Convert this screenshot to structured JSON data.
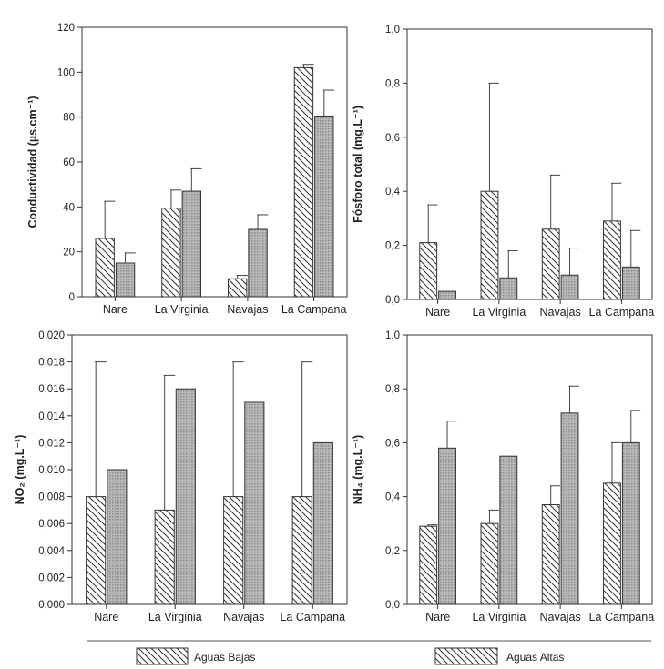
{
  "legend": {
    "items": [
      {
        "label": "Aguas Bajas",
        "pattern": "hatch"
      },
      {
        "label": "Aguas Altas",
        "pattern": "hatch"
      }
    ]
  },
  "colors": {
    "bajas_fill": "#ffffff",
    "altas_fill": "#a9a9a9",
    "stroke": "#333333"
  },
  "chart_data": [
    {
      "type": "bar",
      "categories": [
        "Nare",
        "La Virginia",
        "Navajas",
        "La Campana"
      ],
      "ylabel": "Conductividad (µs.cm⁻¹)",
      "ylim": [
        0,
        120
      ],
      "yticks": [
        0,
        20,
        40,
        60,
        80,
        100,
        120
      ],
      "yticklabels": [
        "0",
        "20",
        "40",
        "60",
        "80",
        "100",
        "120"
      ],
      "series": [
        {
          "name": "Aguas Bajas",
          "values": [
            26,
            39.5,
            8,
            102
          ],
          "error_top": [
            42.5,
            47.5,
            9.5,
            103.5
          ]
        },
        {
          "name": "Aguas Altas",
          "values": [
            15,
            47,
            30,
            80.5
          ],
          "error_top": [
            19.5,
            57,
            36.5,
            92
          ]
        }
      ]
    },
    {
      "type": "bar",
      "categories": [
        "Nare",
        "La Virginia",
        "Navajas",
        "La Campana"
      ],
      "ylabel": "Fósforo total (mg.L⁻¹)",
      "ylim": [
        0,
        1
      ],
      "yticks": [
        0,
        0.2,
        0.4,
        0.6,
        0.8,
        1.0
      ],
      "yticklabels": [
        "0,0",
        "0,2",
        "0,4",
        "0,6",
        "0,8",
        "1,0"
      ],
      "series": [
        {
          "name": "Aguas Bajas",
          "values": [
            0.21,
            0.4,
            0.26,
            0.29
          ],
          "error_top": [
            0.35,
            0.8,
            0.46,
            0.43
          ]
        },
        {
          "name": "Aguas Altas",
          "values": [
            0.03,
            0.08,
            0.09,
            0.12
          ],
          "error_top": [
            0.03,
            0.18,
            0.19,
            0.255
          ]
        }
      ]
    },
    {
      "type": "bar",
      "categories": [
        "Nare",
        "La Virginia",
        "Navajas",
        "La Campana"
      ],
      "ylabel": "NO₂ (mg.L⁻¹)",
      "ylim": [
        0,
        0.02
      ],
      "yticks": [
        0,
        0.002,
        0.004,
        0.006,
        0.008,
        0.01,
        0.012,
        0.014,
        0.016,
        0.018,
        0.02
      ],
      "yticklabels": [
        "0,000",
        "0,002",
        "0,004",
        "0,006",
        "0,008",
        "0,010",
        "0,012",
        "0,014",
        "0,016",
        "0,018",
        "0,020"
      ],
      "series": [
        {
          "name": "Aguas Bajas",
          "values": [
            0.008,
            0.007,
            0.008,
            0.008
          ],
          "error_top": [
            0.018,
            0.017,
            0.018,
            0.018
          ]
        },
        {
          "name": "Aguas Altas",
          "values": [
            0.01,
            0.016,
            0.015,
            0.012
          ],
          "error_top": [
            0.01,
            0.016,
            0.015,
            0.012
          ]
        }
      ]
    },
    {
      "type": "bar",
      "categories": [
        "Nare",
        "La Virginia",
        "Navajas",
        "La Campana"
      ],
      "ylabel": "NH₄ (mg.L⁻¹)",
      "ylim": [
        0,
        1
      ],
      "yticks": [
        0,
        0.2,
        0.4,
        0.6,
        0.8,
        1.0
      ],
      "yticklabels": [
        "0,0",
        "0,2",
        "0,4",
        "0,6",
        "0,8",
        "1,0"
      ],
      "series": [
        {
          "name": "Aguas Bajas",
          "values": [
            0.29,
            0.3,
            0.37,
            0.45
          ],
          "error_top": [
            0.295,
            0.35,
            0.44,
            0.6
          ]
        },
        {
          "name": "Aguas Altas",
          "values": [
            0.58,
            0.55,
            0.71,
            0.6
          ],
          "error_top": [
            0.68,
            0.55,
            0.81,
            0.72
          ]
        }
      ]
    }
  ]
}
